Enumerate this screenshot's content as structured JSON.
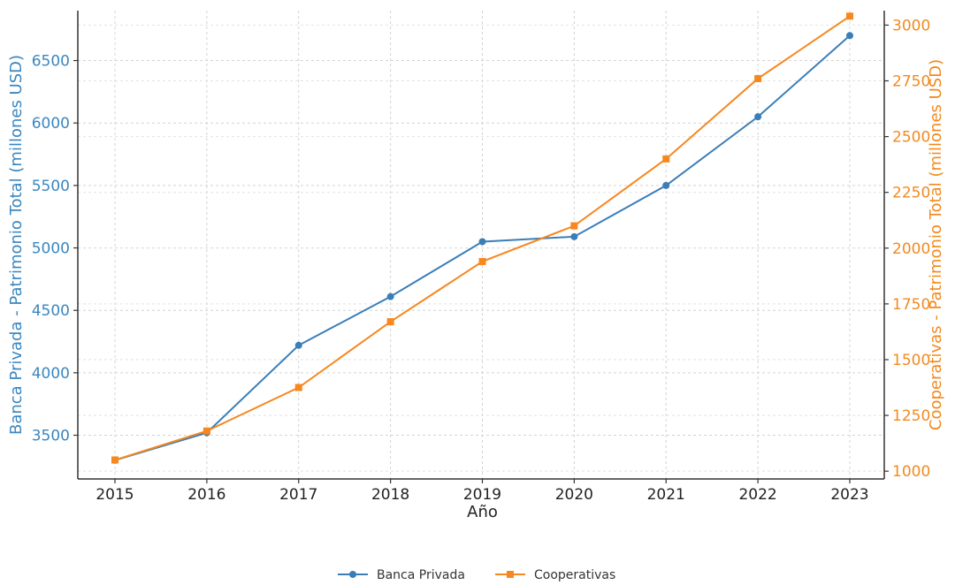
{
  "chart_data": {
    "type": "line",
    "x": [
      "2015",
      "2016",
      "2017",
      "2018",
      "2019",
      "2020",
      "2021",
      "2022",
      "2023"
    ],
    "xlabel": "Año",
    "y_left": {
      "label": "Banca Privada - Patrimonio Total (millones USD)",
      "ticks": [
        3500,
        4000,
        4500,
        5000,
        5500,
        6000,
        6500
      ],
      "range": [
        3150,
        6900
      ],
      "color": "#3a87c0"
    },
    "y_right": {
      "label": "Cooperativas - Patrimonio Total (millones USD)",
      "ticks": [
        1000,
        1250,
        1500,
        1750,
        2000,
        2250,
        2500,
        2750,
        3000
      ],
      "range": [
        965,
        3065
      ],
      "color": "#f28a1e"
    },
    "series": [
      {
        "name": "Banca Privada",
        "axis": "left",
        "color": "#3a7eb8",
        "marker": "circle",
        "values": [
          3300,
          3520,
          4220,
          4610,
          5050,
          5090,
          5500,
          6050,
          6700
        ]
      },
      {
        "name": "Cooperativas",
        "axis": "right",
        "color": "#f7871f",
        "marker": "square",
        "values": [
          1050,
          1180,
          1375,
          1670,
          1940,
          2100,
          2400,
          2760,
          3040
        ]
      }
    ],
    "grid": true,
    "legend_position": "bottom-center"
  }
}
